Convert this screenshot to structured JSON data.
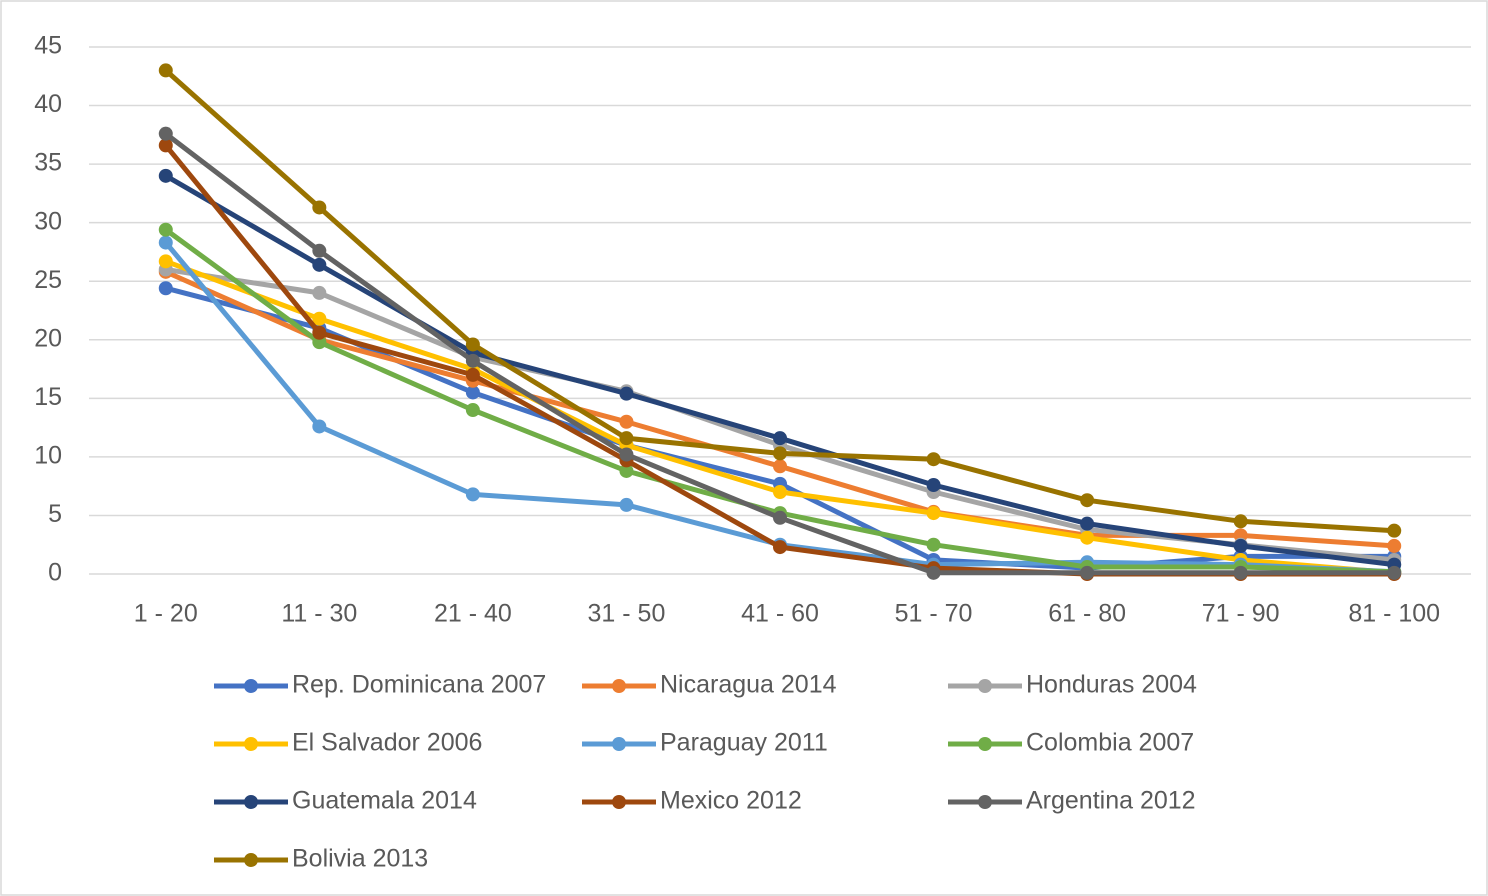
{
  "chart_data": {
    "type": "line",
    "categories": [
      "1 - 20",
      "11 - 30",
      "21 - 40",
      "31 - 50",
      "41 - 60",
      "51 - 70",
      "61 - 80",
      "71 - 90",
      "81 - 100"
    ],
    "ylim": [
      0,
      45
    ],
    "yticks": [
      0,
      5,
      10,
      15,
      20,
      25,
      30,
      35,
      40,
      45
    ],
    "grid": true,
    "legend": "bottom",
    "series": [
      {
        "name": "Rep. Dominicana 2007",
        "color": "#4472c4",
        "values": [
          24.4,
          21,
          15.5,
          11,
          7.7,
          1.2,
          0.5,
          1.5,
          1.5
        ]
      },
      {
        "name": "Nicaragua 2014",
        "color": "#ed7d31",
        "values": [
          25.8,
          20,
          16.5,
          13,
          9.2,
          5.3,
          3.3,
          3.3,
          2.4
        ]
      },
      {
        "name": "Honduras 2004",
        "color": "#a5a5a5",
        "values": [
          26,
          24,
          18.5,
          15.6,
          11,
          7,
          3.8,
          2.5,
          1.2
        ]
      },
      {
        "name": "El Salvador 2006",
        "color": "#ffc000",
        "values": [
          26.7,
          21.8,
          17.5,
          11,
          7,
          5.2,
          3.1,
          1.2,
          0.1
        ]
      },
      {
        "name": "Paraguay 2011",
        "color": "#5b9bd5",
        "values": [
          28.3,
          12.6,
          6.8,
          5.9,
          2.5,
          0.8,
          1,
          0.8,
          0.2
        ]
      },
      {
        "name": "Colombia 2007",
        "color": "#70ad47",
        "values": [
          29.4,
          19.8,
          14,
          8.8,
          5.2,
          2.5,
          0.6,
          0.6,
          0.2
        ]
      },
      {
        "name": "Guatemala 2014",
        "color": "#264478",
        "values": [
          34,
          26.4,
          18.9,
          15.4,
          11.6,
          7.6,
          4.3,
          2.4,
          0.8
        ]
      },
      {
        "name": "Mexico 2012",
        "color": "#9e480e",
        "values": [
          36.6,
          20.6,
          17,
          9.7,
          2.3,
          0.5,
          0,
          0,
          0
        ]
      },
      {
        "name": "Argentina 2012",
        "color": "#636363",
        "values": [
          37.6,
          27.6,
          18.2,
          10.2,
          4.8,
          0.1,
          0.1,
          0.1,
          0.1
        ]
      },
      {
        "name": "Bolivia 2013",
        "color": "#997300",
        "values": [
          43,
          31.3,
          19.6,
          11.6,
          10.3,
          9.8,
          6.3,
          4.5,
          3.7
        ]
      }
    ]
  }
}
